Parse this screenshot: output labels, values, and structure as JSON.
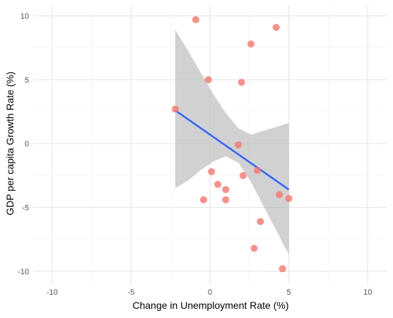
{
  "chart_data": {
    "type": "scatter",
    "xlabel": "Change in Unemployment Rate (%)",
    "ylabel": "GDP per capita Growth Rate (%)",
    "xlim": [
      -11.2,
      11.2
    ],
    "ylim": [
      -11.0,
      10.8
    ],
    "x_ticks": [
      -10,
      -5,
      0,
      5,
      10
    ],
    "y_ticks": [
      10,
      5,
      0,
      -5,
      -10
    ],
    "x_tick_labels": [
      "-10",
      "-5",
      "0",
      "5",
      "10"
    ],
    "y_tick_labels": [
      "10",
      "5",
      "0",
      "-5",
      "-10"
    ],
    "grid": true,
    "points": [
      {
        "x": -2.2,
        "y": 2.7
      },
      {
        "x": -0.9,
        "y": 9.7
      },
      {
        "x": -0.4,
        "y": -4.4
      },
      {
        "x": -0.1,
        "y": 5.0
      },
      {
        "x": 0.1,
        "y": -2.2
      },
      {
        "x": 0.5,
        "y": -3.2
      },
      {
        "x": 1.0,
        "y": -3.6
      },
      {
        "x": 1.0,
        "y": -4.4
      },
      {
        "x": 1.8,
        "y": -0.1
      },
      {
        "x": 2.0,
        "y": 4.8
      },
      {
        "x": 2.1,
        "y": -2.5
      },
      {
        "x": 2.6,
        "y": 7.8
      },
      {
        "x": 2.8,
        "y": -8.2
      },
      {
        "x": 3.0,
        "y": -2.1
      },
      {
        "x": 3.2,
        "y": -6.1
      },
      {
        "x": 4.2,
        "y": 9.1
      },
      {
        "x": 4.4,
        "y": -4.0
      },
      {
        "x": 4.6,
        "y": -9.8
      },
      {
        "x": 5.0,
        "y": -4.3
      }
    ],
    "trend_line": {
      "x": [
        -2.2,
        5.0
      ],
      "y": [
        2.6,
        -3.6
      ]
    },
    "confidence_band": {
      "x": [
        -2.2,
        -1.4,
        -0.6,
        0.2,
        1.0,
        1.8,
        2.6,
        3.4,
        4.2,
        5.0
      ],
      "upper": [
        8.9,
        7.3,
        5.6,
        3.9,
        2.4,
        1.2,
        0.7,
        1.0,
        1.3,
        1.6
      ],
      "lower": [
        -3.5,
        -2.9,
        -2.1,
        -1.4,
        -1.0,
        -1.5,
        -3.0,
        -4.9,
        -6.8,
        -8.7
      ]
    },
    "colors": {
      "point": "#f8766d",
      "trend": "#3366ff",
      "band": "#b3b3b3",
      "grid_major": "#e3e3e3",
      "grid_minor": "#f1f1f1"
    }
  }
}
